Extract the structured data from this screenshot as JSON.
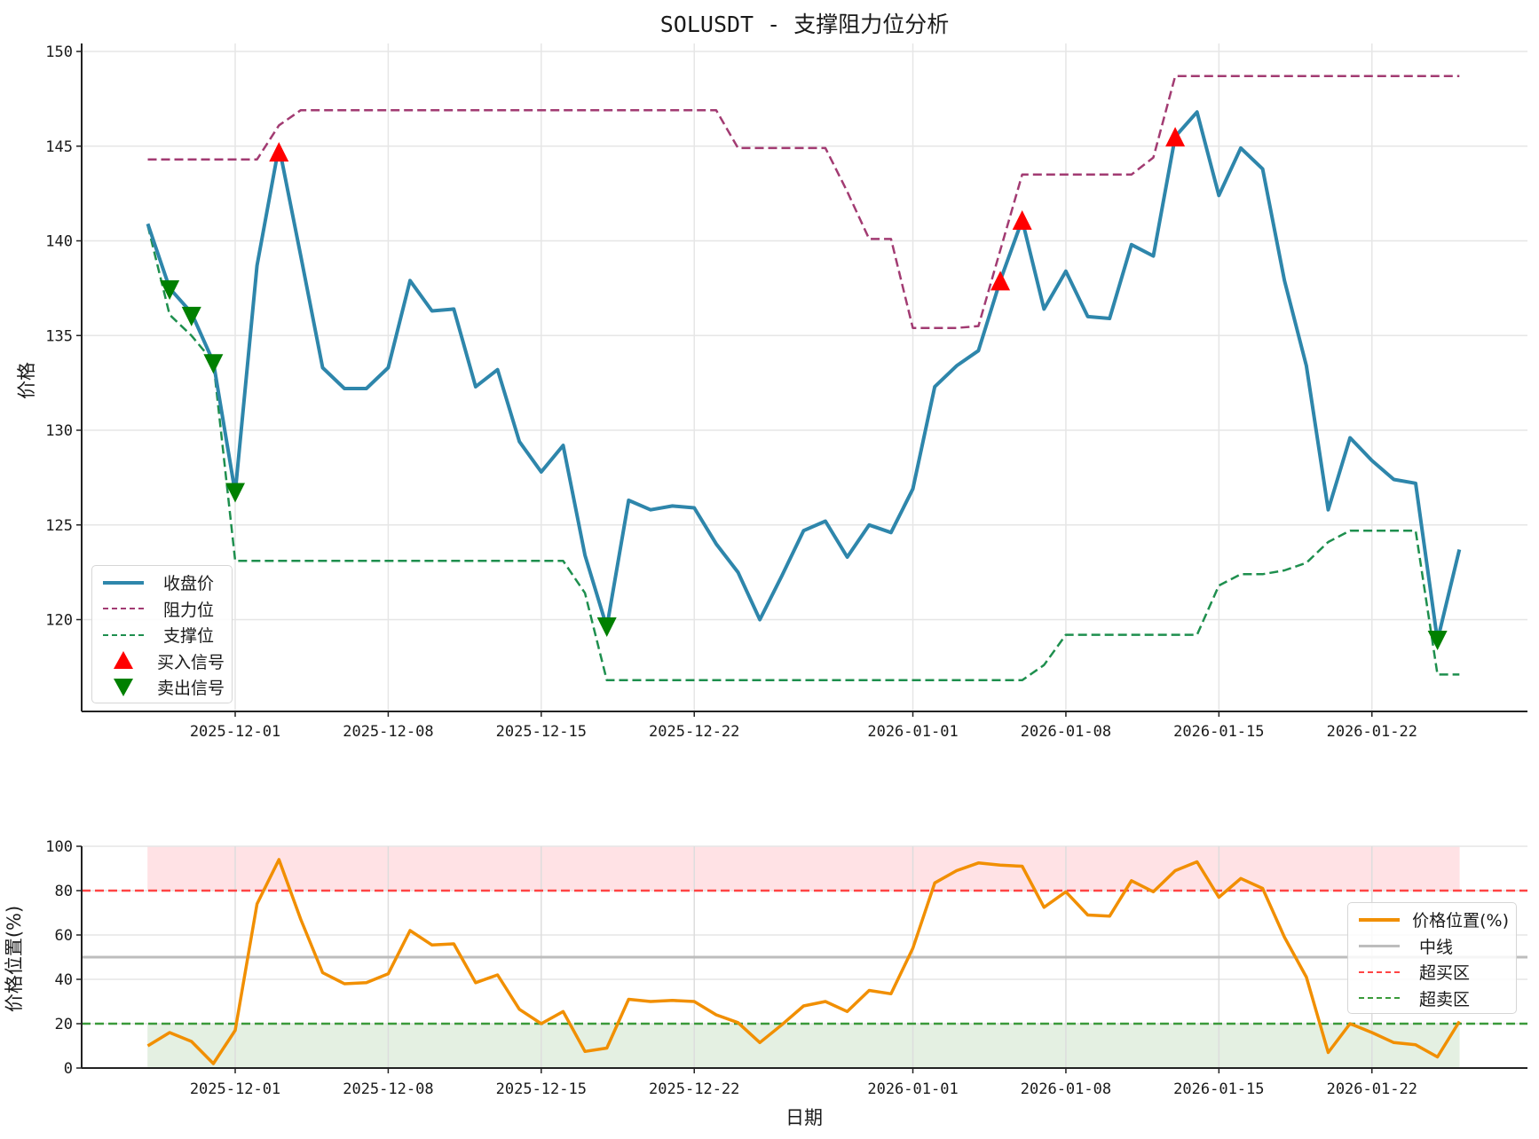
{
  "figure": {
    "main_title": "SOLUSDT - 支撑阻力位分析",
    "top_chart": {
      "ylabel": "价格",
      "legend": [
        {
          "label": "收盘价",
          "style": "solid",
          "color": "#2e86ab"
        },
        {
          "label": "阻力位",
          "style": "dashed",
          "color": "#a23b72"
        },
        {
          "label": "支撑位",
          "style": "dashed",
          "color": "#1e8f4e"
        },
        {
          "label": "买入信号",
          "style": "triangle-up",
          "color": "#ff0000"
        },
        {
          "label": "卖出信号",
          "style": "triangle-down",
          "color": "#008000"
        }
      ]
    },
    "bottom_chart": {
      "ylabel": "价格位置(%)",
      "xlabel": "日期",
      "legend": [
        {
          "label": "价格位置(%)",
          "style": "solid",
          "color": "#f18f01"
        },
        {
          "label": "中线",
          "style": "solid",
          "color": "#bdbdbd"
        },
        {
          "label": "超买区",
          "style": "dashed",
          "color": "#ff4444"
        },
        {
          "label": "超卖区",
          "style": "dashed",
          "color": "#3a9a3a"
        }
      ]
    }
  },
  "chart_data": [
    {
      "type": "line",
      "title": "SOLUSDT - 支撑阻力位分析",
      "xlabel": "",
      "ylabel": "价格",
      "ylim": [
        115.2,
        150.4
      ],
      "yticks": [
        120,
        125,
        130,
        135,
        140,
        145,
        150
      ],
      "xticks": [
        "2025-12-01",
        "2025-12-08",
        "2025-12-15",
        "2025-12-22",
        "2026-01-01",
        "2026-01-08",
        "2026-01-15",
        "2026-01-22"
      ],
      "grid": true,
      "legend_position": "lower left",
      "x": [
        "2025-11-27",
        "2025-11-28",
        "2025-11-29",
        "2025-11-30",
        "2025-12-01",
        "2025-12-02",
        "2025-12-03",
        "2025-12-04",
        "2025-12-05",
        "2025-12-06",
        "2025-12-07",
        "2025-12-08",
        "2025-12-09",
        "2025-12-10",
        "2025-12-11",
        "2025-12-12",
        "2025-12-13",
        "2025-12-14",
        "2025-12-15",
        "2025-12-16",
        "2025-12-17",
        "2025-12-18",
        "2025-12-19",
        "2025-12-20",
        "2025-12-21",
        "2025-12-22",
        "2025-12-23",
        "2025-12-24",
        "2025-12-25",
        "2025-12-26",
        "2025-12-27",
        "2025-12-28",
        "2025-12-29",
        "2025-12-30",
        "2025-12-31",
        "2026-01-01",
        "2026-01-02",
        "2026-01-03",
        "2026-01-04",
        "2026-01-05",
        "2026-01-06",
        "2026-01-07",
        "2026-01-08",
        "2026-01-09",
        "2026-01-10",
        "2026-01-11",
        "2026-01-12",
        "2026-01-13",
        "2026-01-14",
        "2026-01-15",
        "2026-01-16",
        "2026-01-17",
        "2026-01-18",
        "2026-01-19",
        "2026-01-20",
        "2026-01-21",
        "2026-01-22",
        "2026-01-23",
        "2026-01-24",
        "2026-01-25",
        "2026-01-26"
      ],
      "series": [
        {
          "name": "收盘价",
          "style": "solid",
          "color": "#2e86ab",
          "values": [
            140.9,
            137.5,
            136.2,
            133.6,
            126.7,
            138.7,
            145.0,
            139.2,
            133.3,
            132.2,
            132.2,
            133.3,
            137.9,
            136.3,
            136.4,
            132.3,
            133.2,
            129.4,
            127.8,
            129.2,
            123.4,
            119.6,
            126.3,
            125.8,
            126.0,
            125.9,
            124.0,
            122.5,
            120.0,
            122.3,
            124.7,
            125.2,
            123.3,
            125.0,
            124.6,
            126.9,
            132.3,
            133.4,
            134.2,
            137.9,
            141.1,
            136.4,
            138.4,
            136.0,
            135.9,
            139.8,
            139.2,
            145.5,
            146.8,
            142.4,
            144.9,
            143.8,
            137.9,
            133.4,
            125.8,
            129.6,
            128.4,
            127.4,
            127.2,
            118.9,
            123.7
          ]
        },
        {
          "name": "阻力位",
          "style": "dashed",
          "color": "#a23b72",
          "values": [
            144.3,
            144.3,
            144.3,
            144.3,
            144.3,
            144.3,
            146.1,
            146.9,
            146.9,
            146.9,
            146.9,
            146.9,
            146.9,
            146.9,
            146.9,
            146.9,
            146.9,
            146.9,
            146.9,
            146.9,
            146.9,
            146.9,
            146.9,
            146.9,
            146.9,
            146.9,
            146.9,
            144.9,
            144.9,
            144.9,
            144.9,
            144.9,
            142.6,
            140.1,
            140.1,
            135.4,
            135.4,
            135.4,
            135.5,
            139.5,
            143.5,
            143.5,
            143.5,
            143.5,
            143.5,
            143.5,
            144.4,
            148.7,
            148.7,
            148.7,
            148.7,
            148.7,
            148.7,
            148.7,
            148.7,
            148.7,
            148.7,
            148.7,
            148.7,
            148.7,
            148.7
          ]
        },
        {
          "name": "支撑位",
          "style": "dashed",
          "color": "#1e8f4e",
          "values": [
            140.8,
            136.1,
            135.0,
            133.6,
            123.1,
            123.1,
            123.1,
            123.1,
            123.1,
            123.1,
            123.1,
            123.1,
            123.1,
            123.1,
            123.1,
            123.1,
            123.1,
            123.1,
            123.1,
            123.1,
            121.4,
            116.8,
            116.8,
            116.8,
            116.8,
            116.8,
            116.8,
            116.8,
            116.8,
            116.8,
            116.8,
            116.8,
            116.8,
            116.8,
            116.8,
            116.8,
            116.8,
            116.8,
            116.8,
            116.8,
            116.8,
            117.6,
            119.2,
            119.2,
            119.2,
            119.2,
            119.2,
            119.2,
            119.2,
            121.8,
            122.4,
            122.4,
            122.6,
            123.0,
            124.1,
            124.7,
            124.7,
            124.7,
            124.7,
            117.1,
            117.1
          ]
        }
      ],
      "markers": [
        {
          "name": "买入信号",
          "marker": "triangle-up",
          "color": "#ff0000",
          "points": [
            {
              "x": "2025-12-03",
              "y": 144.7
            },
            {
              "x": "2026-01-05",
              "y": 137.9
            },
            {
              "x": "2026-01-06",
              "y": 141.1
            },
            {
              "x": "2026-01-13",
              "y": 145.5
            }
          ]
        },
        {
          "name": "卖出信号",
          "marker": "triangle-down",
          "color": "#008000",
          "points": [
            {
              "x": "2025-11-28",
              "y": 137.4
            },
            {
              "x": "2025-11-29",
              "y": 136.0
            },
            {
              "x": "2025-11-30",
              "y": 133.5
            },
            {
              "x": "2025-12-01",
              "y": 126.7
            },
            {
              "x": "2025-12-18",
              "y": 119.6
            },
            {
              "x": "2026-01-25",
              "y": 118.9
            }
          ]
        }
      ]
    },
    {
      "type": "line",
      "title": "",
      "xlabel": "日期",
      "ylabel": "价格位置(%)",
      "ylim": [
        0,
        100
      ],
      "yticks": [
        0,
        20,
        40,
        60,
        80,
        100
      ],
      "xticks": [
        "2025-12-01",
        "2025-12-08",
        "2025-12-15",
        "2025-12-22",
        "2026-01-01",
        "2026-01-08",
        "2026-01-15",
        "2026-01-22"
      ],
      "grid": true,
      "legend_position": "center right",
      "series": [
        {
          "name": "价格位置(%)",
          "style": "solid",
          "color": "#f18f01",
          "values": [
            10,
            16,
            12,
            2,
            17,
            74,
            94,
            67,
            43,
            38,
            38.5,
            42.5,
            62,
            55.5,
            56,
            38.5,
            42,
            26.5,
            20,
            25.5,
            7.5,
            9,
            31,
            30,
            30.5,
            30,
            24,
            20.5,
            11.5,
            19.5,
            28,
            30,
            25.5,
            35,
            33.5,
            54,
            83.5,
            89,
            92.5,
            91.5,
            91,
            72.5,
            79.5,
            69,
            68.5,
            84.5,
            79.5,
            89,
            93,
            77,
            85.5,
            81,
            59,
            41,
            7,
            20,
            16,
            11.5,
            10.5,
            5,
            21
          ]
        }
      ],
      "hlines": [
        {
          "name": "中线",
          "y": 50,
          "style": "solid",
          "color": "#bdbdbd"
        },
        {
          "name": "超买区",
          "y": 80,
          "style": "dashed",
          "color": "#ff4444"
        },
        {
          "name": "超卖区",
          "y": 20,
          "style": "dashed",
          "color": "#3a9a3a"
        }
      ],
      "shaded_regions": [
        {
          "name": "overbought-zone",
          "y_from": 80,
          "y_to": 100,
          "color": "#ffe2e5"
        },
        {
          "name": "oversold-zone",
          "y_from": 0,
          "y_to": 20,
          "color": "#e4f0e2"
        }
      ]
    }
  ]
}
